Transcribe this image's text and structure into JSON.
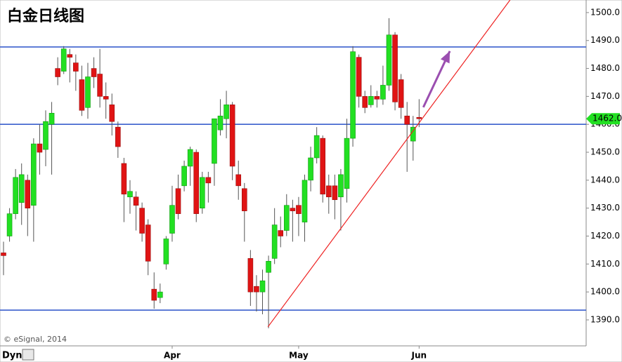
{
  "chart_data": {
    "type": "candlestick",
    "title": "白金日线图",
    "watermark": "© eSignal, 2014",
    "corner_label": "Dyn",
    "categories": [
      null,
      null,
      null,
      null,
      null,
      null,
      null,
      null,
      null,
      null,
      null,
      null,
      null,
      null,
      null,
      null,
      null,
      null,
      null,
      null,
      null,
      null,
      null,
      null,
      null,
      null,
      null,
      null,
      "Apr",
      null,
      null,
      null,
      null,
      null,
      null,
      null,
      null,
      null,
      null,
      null,
      null,
      null,
      null,
      null,
      null,
      null,
      null,
      null,
      null,
      "May",
      null,
      null,
      null,
      null,
      null,
      null,
      null,
      null,
      null,
      null,
      null,
      null,
      null,
      null,
      null,
      null,
      null,
      null,
      null,
      "Jun"
    ],
    "open": [
      1414,
      1420,
      1428,
      1432,
      1440,
      1431,
      1453,
      1451,
      1460,
      1480,
      1479,
      1485,
      1482,
      1476,
      1466,
      1480,
      1478,
      1470,
      1467,
      1459,
      1446,
      1434,
      1434,
      1430,
      1424,
      1401,
      1398,
      1410,
      1421,
      1437,
      1438,
      1445,
      1450,
      1430,
      1441,
      1446,
      1458,
      1462,
      1467,
      1442,
      1437,
      1412,
      1402,
      1400,
      1407,
      1412,
      1422,
      1422,
      1430,
      1431,
      1425,
      1440,
      1448,
      1455,
      1438,
      1438,
      1434,
      1437,
      1455,
      1484,
      1470,
      1467,
      1470,
      1469,
      1474,
      1492,
      1476,
      1463,
      1454,
      1462.5
    ],
    "high": [
      1418,
      1430,
      1444,
      1446,
      1442,
      1455,
      1460,
      1465,
      1468,
      1484,
      1488,
      1487,
      1485,
      1481,
      1482,
      1484,
      1487,
      1475,
      1471,
      1461,
      1448,
      1440,
      1436,
      1432,
      1426,
      1407,
      1403,
      1420,
      1438,
      1442,
      1447,
      1452,
      1451,
      1443,
      1443,
      1462,
      1469,
      1472,
      1468,
      1447,
      1439,
      1415,
      1406,
      1408,
      1413,
      1430,
      1427,
      1435,
      1433,
      1434,
      1442,
      1452,
      1459,
      1456,
      1442,
      1442,
      1444,
      1462,
      1488,
      1485,
      1472,
      1474,
      1472,
      1481,
      1498,
      1493,
      1478,
      1468,
      1463,
      1469
    ],
    "low": [
      1406,
      1418,
      1426,
      1424,
      1420,
      1418,
      1442,
      1445,
      1442,
      1474,
      1478,
      1475,
      1472,
      1463,
      1462,
      1473,
      1466,
      1462,
      1456,
      1448,
      1425,
      1428,
      1422,
      1418,
      1406,
      1394,
      1396,
      1408,
      1418,
      1426,
      1436,
      1438,
      1425,
      1428,
      1432,
      1438,
      1456,
      1455,
      1440,
      1433,
      1418,
      1395,
      1393,
      1392,
      1387,
      1410,
      1416,
      1420,
      1418,
      1420,
      1418,
      1436,
      1446,
      1432,
      1428,
      1426,
      1422,
      1432,
      1452,
      1466,
      1464,
      1466,
      1466,
      1467,
      1472,
      1465,
      1462,
      1443,
      1447,
      1459
    ],
    "close": [
      1413,
      1428,
      1441,
      1442,
      1430,
      1453,
      1450,
      1461,
      1464,
      1477,
      1487,
      1484,
      1479,
      1465,
      1477,
      1477,
      1470,
      1469,
      1461,
      1452,
      1435,
      1436,
      1431,
      1421,
      1411,
      1397,
      1400,
      1419,
      1431,
      1428,
      1445,
      1451,
      1428,
      1441,
      1439,
      1462,
      1463,
      1467,
      1445,
      1438,
      1429,
      1400,
      1400,
      1404,
      1411,
      1424,
      1420,
      1431,
      1429,
      1428,
      1440,
      1448,
      1456,
      1435,
      1434,
      1433,
      1442,
      1455,
      1486,
      1470,
      1466,
      1470,
      1469,
      1474,
      1492,
      1468,
      1466,
      1460,
      1459,
      1462
    ],
    "up_color": "#22e022",
    "down_color": "#e01414",
    "ylim": [
      1380.7,
      1504.5
    ],
    "yticks": [
      {
        "value": 1390,
        "label": "1390.0"
      },
      {
        "value": 1400,
        "label": "1400.0"
      },
      {
        "value": 1410,
        "label": "1410.0"
      },
      {
        "value": 1420,
        "label": "1420.0"
      },
      {
        "value": 1430,
        "label": "1430.0"
      },
      {
        "value": 1440,
        "label": "1440.0"
      },
      {
        "value": 1450,
        "label": "1450.0"
      },
      {
        "value": 1460,
        "label": "1460.0"
      },
      {
        "value": 1470,
        "label": "1470.0"
      },
      {
        "value": 1480,
        "label": "1480.0"
      },
      {
        "value": 1490,
        "label": "1490.0"
      },
      {
        "value": 1500,
        "label": "1500.0"
      }
    ],
    "hlines": [
      1487.7,
      1460,
      1393.5
    ],
    "hline_color": "#3a5fcd",
    "trendline": {
      "x": [
        43.9,
        84.1
      ],
      "y": [
        1387.5,
        1504.5
      ],
      "color": "#ee2222"
    },
    "arrow": {
      "x": [
        69.7,
        74.1
      ],
      "y": [
        1466.1,
        1486.2
      ],
      "color": "#9b4fb0"
    },
    "last_price": {
      "value": 1462,
      "label": "1462.0"
    },
    "last_price_color": "#22e022"
  }
}
